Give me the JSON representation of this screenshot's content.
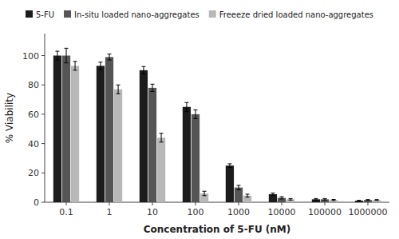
{
  "chart_data": {
    "type": "bar",
    "categories": [
      "0.1",
      "1",
      "10",
      "100",
      "1000",
      "10000",
      "100000",
      "1000000"
    ],
    "series": [
      {
        "name": "5-FU",
        "color": "#1c1c1c",
        "values": [
          100,
          93,
          90,
          65,
          25,
          5.5,
          2,
          1
        ],
        "errors": [
          3,
          2.5,
          2.5,
          3,
          1.2,
          0.8,
          0.5,
          0.3
        ]
      },
      {
        "name": "In-situ loaded nano-aggregates",
        "color": "#555555",
        "values": [
          100,
          99,
          78,
          60,
          10,
          3,
          2,
          1.5
        ],
        "errors": [
          5,
          2,
          2.5,
          3,
          1.5,
          0.8,
          0.5,
          0.3
        ]
      },
      {
        "name": "Freeeze dried loaded nano-aggregates",
        "color": "#b8b8b8",
        "values": [
          93,
          77,
          44,
          6,
          4.5,
          2,
          1.5,
          1.5
        ],
        "errors": [
          3,
          3,
          3,
          1.5,
          1,
          0.5,
          0.4,
          0.3
        ]
      }
    ],
    "xlabel": "Concentration of 5-FU (nM)",
    "ylabel": "% Viability",
    "ylim": [
      0,
      115
    ],
    "yticks": [
      0,
      20,
      40,
      60,
      80,
      100
    ],
    "legend": "top"
  }
}
